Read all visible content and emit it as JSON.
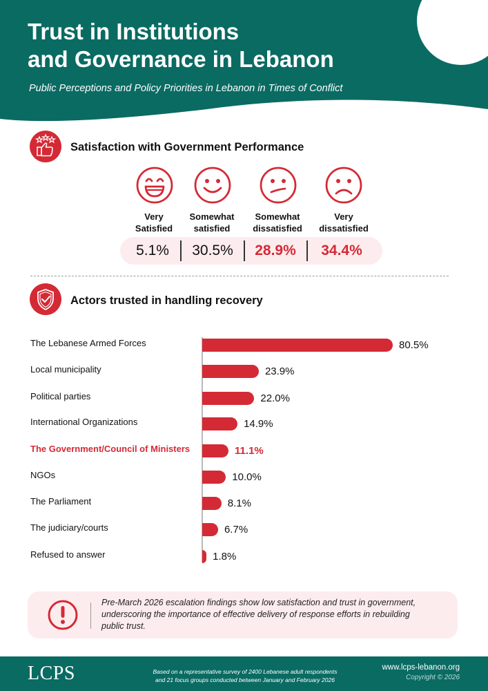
{
  "header": {
    "title_line1": "Trust in Institutions",
    "title_line2": "and Governance in Lebanon",
    "subtitle": "Public Perceptions and Policy Priorities in Lebanon in Times of Conflict"
  },
  "colors": {
    "teal": "#0a6b63",
    "red": "#d42a35",
    "pink": "#fdecee"
  },
  "satisfaction": {
    "title": "Satisfaction with Government Performance",
    "icon": "thumbs-up-stars-icon",
    "items": [
      {
        "line1": "Very",
        "line2": "Satisfied",
        "value": "5.1%",
        "face": "grinning-face-icon"
      },
      {
        "line1": "Somewhat",
        "line2": "satisfied",
        "value": "30.5%",
        "face": "smiling-face-icon"
      },
      {
        "line1": "Somewhat",
        "line2": "dissatisfied",
        "value": "28.9%",
        "face": "uneasy-face-icon"
      },
      {
        "line1": "Very",
        "line2": "dissatisfied",
        "value": "34.4%",
        "face": "frowning-face-icon"
      }
    ]
  },
  "recovery": {
    "title": "Actors trusted in handling recovery",
    "icon": "shield-check-icon"
  },
  "chart_data": {
    "type": "bar",
    "orientation": "horizontal",
    "categories": [
      "The Lebanese Armed Forces",
      "Local municipality",
      "Political parties",
      "International Organizations",
      "The Government/Council of Ministers",
      "NGOs",
      "The Parliament",
      "The judiciary/courts",
      "Refused to answer"
    ],
    "values": [
      80.5,
      23.9,
      22.0,
      14.9,
      11.1,
      10.0,
      8.1,
      6.7,
      1.8
    ],
    "value_labels": [
      "80.5%",
      "23.9%",
      "22.0%",
      "14.9%",
      "11.1%",
      "10.0%",
      "8.1%",
      "6.7%",
      "1.8%"
    ],
    "highlight_index": 4,
    "xlim": [
      0,
      100
    ],
    "grid": false,
    "legend": "none"
  },
  "note": {
    "icon": "exclamation-circle-icon",
    "text": "Pre-March 2026 escalation findings show low satisfaction and trust in government, underscoring the importance of effective delivery of response efforts in rebuilding public trust."
  },
  "footer": {
    "logo": "LCPS",
    "footnote_line1": "Based on a representative survey of 2400 Lebanese adult respondents",
    "footnote_line2": "and 21 focus groups conducted between January and February 2026",
    "website": "www.lcps-lebanon.org",
    "copyright": "Copyright © 2026"
  }
}
